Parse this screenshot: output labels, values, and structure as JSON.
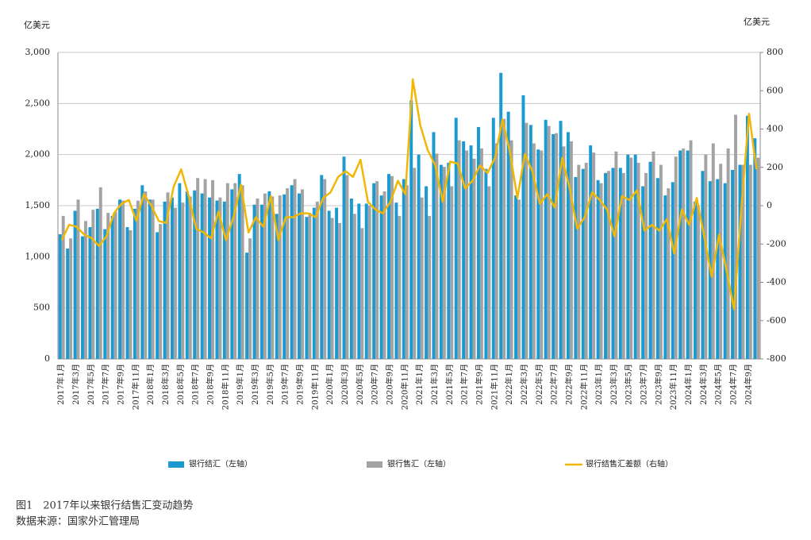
{
  "chart_data": {
    "type": "bar",
    "y_label": "亿美元",
    "y2_label": "亿美元",
    "caption": "图1　2017年以来银行结售汇变动趋势",
    "source": "数据来源：国家外汇管理局",
    "categories": [
      "2017年1月",
      null,
      "2017年3月",
      null,
      "2017年5月",
      null,
      "2017年7月",
      null,
      "2017年9月",
      null,
      "2017年11月",
      null,
      "2018年1月",
      null,
      "2018年3月",
      null,
      "2018年5月",
      null,
      "2018年7月",
      null,
      "2018年9月",
      null,
      "2018年11月",
      null,
      "2019年1月",
      null,
      "2019年3月",
      null,
      "2019年5月",
      null,
      "2019年7月",
      null,
      "2019年9月",
      null,
      "2019年11月",
      null,
      "2020年1月",
      null,
      "2020年3月",
      null,
      "2020年5月",
      null,
      "2020年7月",
      null,
      "2020年9月",
      null,
      "2020年11月",
      null,
      "2021年1月",
      null,
      "2021年3月",
      null,
      "2021年5月",
      null,
      "2021年7月",
      null,
      "2021年9月",
      null,
      "2021年11月",
      null,
      "2022年1月",
      null,
      "2022年3月",
      null,
      "2022年5月",
      null,
      "2022年7月",
      null,
      "2022年9月",
      null,
      "2022年11月",
      null,
      "2023年1月",
      null,
      "2023年3月",
      null,
      "2023年5月",
      null,
      "2023年7月",
      null,
      "2023年9月",
      null,
      "2023年11月",
      null,
      "2024年1月",
      null,
      "2024年3月",
      null,
      "2024年5月",
      null,
      "2024年7月",
      null,
      "2024年9月",
      null
    ],
    "series": [
      {
        "name": "银行结汇（左轴）",
        "type": "bar",
        "axis": "y",
        "color": "#1b9ad2",
        "values": [
          1220,
          1080,
          1450,
          1200,
          1290,
          1470,
          1270,
          1400,
          1560,
          1290,
          1470,
          1700,
          1560,
          1240,
          1540,
          1580,
          1720,
          1640,
          1650,
          1620,
          1580,
          1550,
          1540,
          1660,
          1810,
          1040,
          1510,
          1510,
          1640,
          1420,
          1610,
          1700,
          1620,
          1390,
          1480,
          1800,
          1450,
          1480,
          1980,
          1570,
          1520,
          1520,
          1720,
          1600,
          1810,
          1530,
          1760,
          2530,
          2000,
          1690,
          2220,
          1900,
          1920,
          2360,
          2130,
          2090,
          2270,
          1860,
          2360,
          2800,
          2420,
          1600,
          2580,
          2290,
          2050,
          2340,
          2200,
          2330,
          2220,
          1780,
          1860,
          2090,
          1750,
          1820,
          1870,
          1870,
          2000,
          2000,
          1690,
          1930,
          1770,
          1600,
          1730,
          2040,
          2040,
          1540,
          1840,
          1740,
          1760,
          1720,
          1850,
          1900,
          2380,
          2160
        ]
      },
      {
        "name": "银行售汇（左轴）",
        "type": "bar",
        "axis": "y",
        "color": "#a3a3a3",
        "values": [
          1400,
          1180,
          1560,
          1350,
          1460,
          1680,
          1430,
          1440,
          1550,
          1260,
          1550,
          1640,
          1560,
          1320,
          1630,
          1480,
          1530,
          1590,
          1770,
          1760,
          1750,
          1580,
          1720,
          1720,
          1700,
          1180,
          1570,
          1620,
          1590,
          1600,
          1670,
          1760,
          1660,
          1430,
          1540,
          1760,
          1380,
          1330,
          1800,
          1420,
          1280,
          1500,
          1740,
          1640,
          1790,
          1400,
          1700,
          1870,
          1580,
          1400,
          2010,
          1880,
          1690,
          2140,
          2040,
          1960,
          2060,
          1690,
          2110,
          2350,
          2140,
          1560,
          2310,
          2110,
          2040,
          2280,
          2210,
          2080,
          2130,
          1900,
          1920,
          2020,
          1720,
          1840,
          2030,
          1820,
          1970,
          1920,
          1820,
          2030,
          1900,
          1670,
          1980,
          2060,
          2140,
          1500,
          2000,
          2110,
          1910,
          2060,
          2390,
          1900,
          1900,
          1970
        ]
      },
      {
        "name": "银行结售汇差额（右轴）",
        "type": "line",
        "axis": "y2",
        "color": "#f2b705",
        "values": [
          -180,
          -100,
          -110,
          -150,
          -170,
          -210,
          -160,
          -40,
          10,
          30,
          -80,
          60,
          0,
          -80,
          -90,
          100,
          190,
          50,
          -120,
          -140,
          -170,
          -30,
          -180,
          -60,
          110,
          -140,
          -60,
          -110,
          50,
          -180,
          -60,
          -60,
          -40,
          -40,
          -60,
          40,
          70,
          150,
          180,
          150,
          240,
          20,
          -20,
          -40,
          20,
          130,
          60,
          660,
          420,
          290,
          210,
          20,
          230,
          220,
          90,
          130,
          210,
          170,
          250,
          450,
          280,
          40,
          270,
          180,
          10,
          60,
          -10,
          250,
          90,
          -120,
          -60,
          70,
          30,
          -20,
          -160,
          50,
          30,
          80,
          -130,
          -100,
          -130,
          -70,
          -250,
          -20,
          -100,
          40,
          -160,
          -370,
          -150,
          -340,
          -540,
          0,
          480,
          190
        ]
      }
    ],
    "ylim": [
      0,
      3000
    ],
    "yticks": [
      0,
      500,
      {
        "value": 1000,
        "label": "1,000"
      },
      {
        "value": 1500,
        "label": "1,500"
      },
      {
        "value": 2000,
        "label": "2,000"
      },
      {
        "value": 2500,
        "label": "2,500"
      },
      {
        "value": 3000,
        "label": "3,000"
      }
    ],
    "y2lim": [
      -800,
      800
    ],
    "y2ticks": [
      -800,
      -600,
      -400,
      -200,
      0,
      200,
      400,
      600,
      800
    ],
    "grid": true
  }
}
